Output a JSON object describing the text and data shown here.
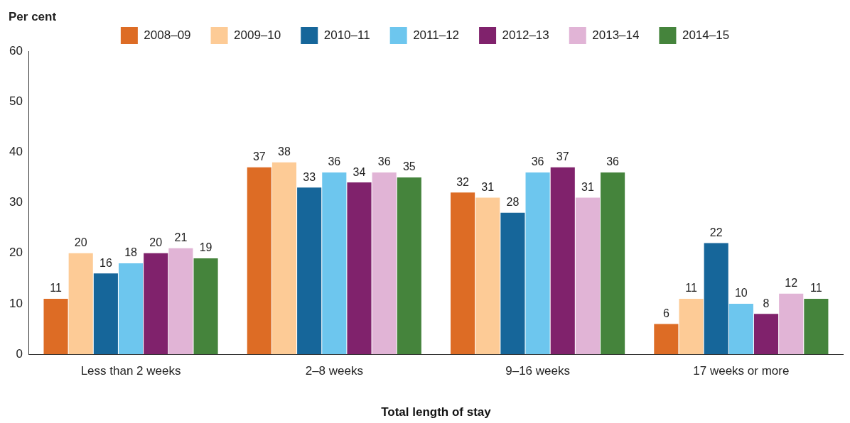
{
  "chart_data": {
    "type": "bar",
    "ylabel": "Per cent",
    "xlabel": "Total length of stay",
    "categories": [
      "Less than 2 weeks",
      "2–8 weeks",
      "9–16 weeks",
      "17 weeks or more"
    ],
    "series": [
      {
        "name": "2008–09",
        "color": "#dd6c25",
        "values": [
          11,
          37,
          32,
          6
        ]
      },
      {
        "name": "2009–10",
        "color": "#fdcb96",
        "values": [
          20,
          38,
          31,
          11
        ]
      },
      {
        "name": "2010–11",
        "color": "#16669a",
        "values": [
          16,
          33,
          28,
          22
        ]
      },
      {
        "name": "2011–12",
        "color": "#6dc6ee",
        "values": [
          18,
          36,
          36,
          10
        ]
      },
      {
        "name": "2012–13",
        "color": "#80226c",
        "values": [
          20,
          34,
          37,
          8
        ]
      },
      {
        "name": "2013–14",
        "color": "#e1b4d6",
        "values": [
          21,
          36,
          31,
          12
        ]
      },
      {
        "name": "2014–15",
        "color": "#45843c",
        "values": [
          19,
          35,
          36,
          11
        ]
      }
    ],
    "ylim": [
      0,
      60
    ],
    "yticks": [
      0,
      10,
      20,
      30,
      40,
      50,
      60
    ],
    "grid": false,
    "legend": "top",
    "data_labels": true
  }
}
